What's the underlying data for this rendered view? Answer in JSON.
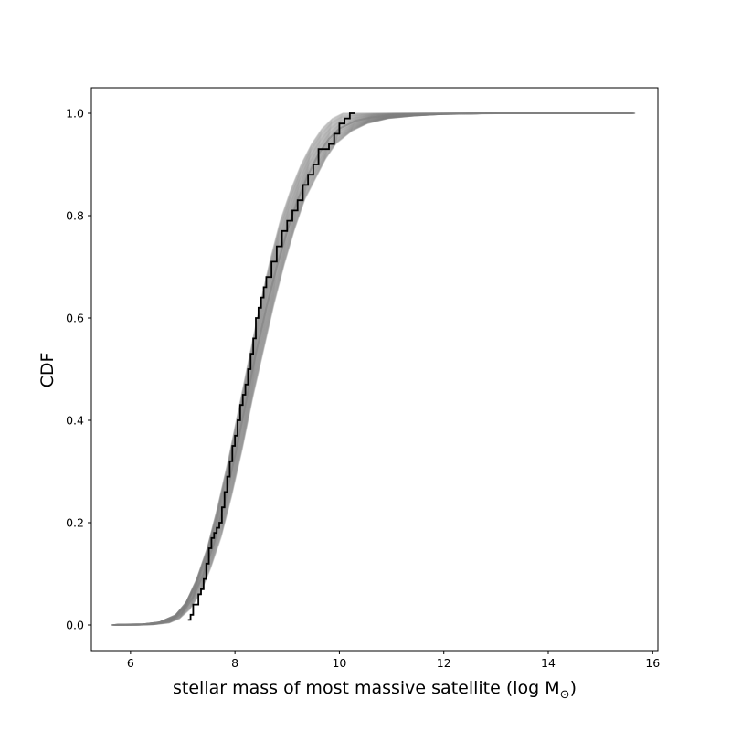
{
  "chart_data": {
    "type": "line",
    "title": "",
    "xlabel": "stellar mass of most massive satellite (log M",
    "xlabel_subscript": "⊙",
    "xlabel_close": ")",
    "ylabel": "CDF",
    "xlim": [
      5.25,
      16.1
    ],
    "ylim": [
      -0.05,
      1.05
    ],
    "xticks": [
      6,
      8,
      10,
      12,
      14,
      16
    ],
    "yticks": [
      0.0,
      0.2,
      0.4,
      0.6,
      0.8,
      1.0
    ],
    "xtick_labels": [
      "6",
      "8",
      "10",
      "12",
      "14",
      "16"
    ],
    "ytick_labels": [
      "0.0",
      "0.2",
      "0.4",
      "0.6",
      "0.8",
      "1.0"
    ],
    "grid": false,
    "legend": "none",
    "series": [
      {
        "role": "ensemble",
        "color": "#808080",
        "x": [
          5.7,
          6.2,
          6.5,
          6.8,
          7.0,
          7.2,
          7.4,
          7.6,
          7.8,
          8.0,
          8.2,
          8.4,
          8.6,
          8.8,
          9.0,
          9.2,
          9.4,
          9.6,
          9.8,
          10.0,
          10.3,
          10.6,
          11.0,
          11.5,
          12.0,
          13.0,
          14.0,
          15.0,
          15.6
        ],
        "y": [
          0.0,
          0.001,
          0.003,
          0.01,
          0.025,
          0.055,
          0.1,
          0.16,
          0.24,
          0.33,
          0.43,
          0.53,
          0.62,
          0.7,
          0.77,
          0.83,
          0.88,
          0.92,
          0.95,
          0.97,
          0.985,
          0.992,
          0.996,
          0.998,
          0.999,
          1.0,
          1.0,
          1.0,
          1.0
        ],
        "band_lower": [
          0.0,
          0.0,
          0.001,
          0.004,
          0.012,
          0.03,
          0.06,
          0.11,
          0.17,
          0.25,
          0.34,
          0.44,
          0.53,
          0.62,
          0.7,
          0.77,
          0.83,
          0.87,
          0.91,
          0.94,
          0.965,
          0.98,
          0.99,
          0.995,
          0.998,
          1.0,
          1.0,
          1.0,
          1.0
        ],
        "band_upper": [
          0.001,
          0.002,
          0.006,
          0.02,
          0.045,
          0.09,
          0.15,
          0.23,
          0.32,
          0.42,
          0.52,
          0.62,
          0.71,
          0.79,
          0.85,
          0.9,
          0.94,
          0.97,
          0.99,
          1.0,
          1.0,
          1.0,
          1.0,
          1.0,
          1.0,
          1.0,
          1.0,
          1.0,
          1.0
        ]
      },
      {
        "role": "observed",
        "color": "#000000",
        "x": [
          7.1,
          7.15,
          7.2,
          7.3,
          7.35,
          7.4,
          7.45,
          7.5,
          7.55,
          7.6,
          7.65,
          7.7,
          7.75,
          7.8,
          7.85,
          7.9,
          7.95,
          8.0,
          8.05,
          8.1,
          8.15,
          8.2,
          8.25,
          8.3,
          8.35,
          8.4,
          8.45,
          8.5,
          8.55,
          8.6,
          8.7,
          8.8,
          8.9,
          9.0,
          9.1,
          9.2,
          9.3,
          9.4,
          9.5,
          9.6,
          9.8,
          9.9,
          10.0,
          10.1,
          10.2,
          10.3
        ],
        "y": [
          0.01,
          0.02,
          0.04,
          0.06,
          0.07,
          0.09,
          0.12,
          0.15,
          0.17,
          0.18,
          0.19,
          0.2,
          0.23,
          0.26,
          0.29,
          0.32,
          0.35,
          0.37,
          0.4,
          0.43,
          0.45,
          0.47,
          0.5,
          0.53,
          0.56,
          0.6,
          0.62,
          0.64,
          0.66,
          0.68,
          0.71,
          0.74,
          0.77,
          0.79,
          0.81,
          0.83,
          0.86,
          0.88,
          0.9,
          0.93,
          0.94,
          0.96,
          0.98,
          0.99,
          1.0,
          1.0
        ]
      }
    ]
  }
}
